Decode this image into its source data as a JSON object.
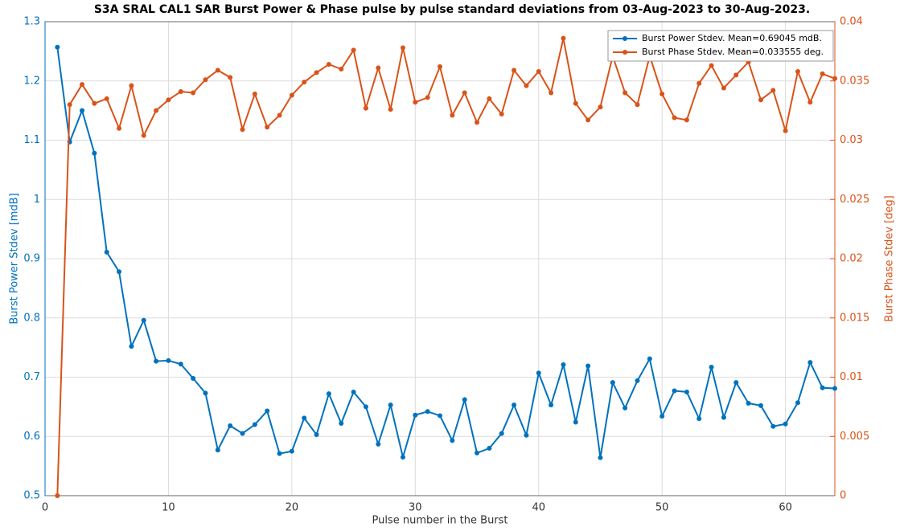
{
  "chart_data": {
    "type": "line",
    "title": "S3A SRAL CAL1 SAR Burst Power & Phase pulse by pulse standard deviations from 03-Aug-2023 to 30-Aug-2023.",
    "x_label": "Pulse number in the Burst",
    "y_label": "Burst Power Stdev [mdB]",
    "y2_label": "Burst Phase Stdev [deg]",
    "x": [
      1,
      2,
      3,
      4,
      5,
      6,
      7,
      8,
      9,
      10,
      11,
      12,
      13,
      14,
      15,
      16,
      17,
      18,
      19,
      20,
      21,
      22,
      23,
      24,
      25,
      26,
      27,
      28,
      29,
      30,
      31,
      32,
      33,
      34,
      35,
      36,
      37,
      38,
      39,
      40,
      41,
      42,
      43,
      44,
      45,
      46,
      47,
      48,
      49,
      50,
      51,
      52,
      53,
      54,
      55,
      56,
      57,
      58,
      59,
      60,
      61,
      62,
      63,
      64
    ],
    "series": [
      {
        "name": "Burst Power Stdev. Mean=0.69045 mdB.",
        "color": "#0072bd",
        "values": [
          1.257,
          1.097,
          1.15,
          1.078,
          0.911,
          0.878,
          0.752,
          0.796,
          0.727,
          0.728,
          0.722,
          0.698,
          0.673,
          0.577,
          0.618,
          0.605,
          0.62,
          0.643,
          0.571,
          0.575,
          0.631,
          0.603,
          0.672,
          0.622,
          0.675,
          0.65,
          0.587,
          0.653,
          0.565,
          0.636,
          0.642,
          0.635,
          0.593,
          0.662,
          0.572,
          0.58,
          0.605,
          0.653,
          0.602,
          0.707,
          0.653,
          0.721,
          0.624,
          0.719,
          0.564,
          0.691,
          0.648,
          0.694,
          0.731,
          0.634,
          0.677,
          0.675,
          0.63,
          0.717,
          0.632,
          0.691,
          0.656,
          0.652,
          0.617,
          0.621,
          0.657,
          0.725,
          0.682,
          0.681
        ]
      },
      {
        "name": "Burst Phase Stdev. Mean=0.033555 deg.",
        "color": "#d95319",
        "axis": "y2",
        "values": [
          0,
          0.033,
          0.0347,
          0.0331,
          0.0335,
          0.031,
          0.0346,
          0.0304,
          0.0325,
          0.0334,
          0.0341,
          0.034,
          0.0351,
          0.0359,
          0.0353,
          0.0309,
          0.0339,
          0.0311,
          0.0321,
          0.0338,
          0.0349,
          0.0357,
          0.0364,
          0.036,
          0.0376,
          0.0327,
          0.0361,
          0.0326,
          0.0378,
          0.0332,
          0.0336,
          0.0362,
          0.0321,
          0.034,
          0.0315,
          0.0335,
          0.0322,
          0.0359,
          0.0346,
          0.0358,
          0.034,
          0.0386,
          0.0331,
          0.0317,
          0.0328,
          0.0371,
          0.034,
          0.033,
          0.0371,
          0.0339,
          0.0319,
          0.0317,
          0.0348,
          0.0363,
          0.0344,
          0.0355,
          0.0366,
          0.0334,
          0.0342,
          0.0308,
          0.0358,
          0.0332,
          0.0356,
          0.0352
        ]
      }
    ],
    "xlim": [
      0,
      64
    ],
    "xticks": [
      0,
      10,
      20,
      30,
      40,
      50,
      60
    ],
    "ylim": [
      0.5,
      1.3
    ],
    "yticks": [
      0.5,
      0.6,
      0.7,
      0.8,
      0.9,
      1,
      1.1,
      1.2,
      1.3
    ],
    "y2lim": [
      0,
      0.04
    ],
    "y2ticks": [
      0,
      0.005,
      0.01,
      0.015,
      0.02,
      0.025,
      0.03,
      0.035,
      0.04
    ],
    "grid": true,
    "legend": "top-right"
  }
}
